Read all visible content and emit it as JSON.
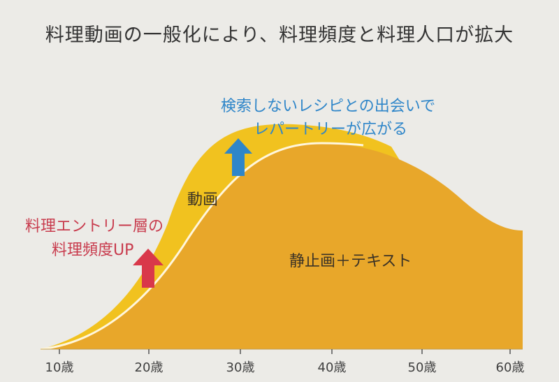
{
  "title": "料理動画の一般化により、料理頻度と料理人口が拡大",
  "annotations": {
    "blue_line1": "検索しないレシピとの出会いで",
    "blue_line2": "レパートリーが広がる",
    "red_line1": "料理エントリー層の",
    "red_line2": "料理頻度UP",
    "video_label": "動画",
    "static_label": "静止画＋テキスト"
  },
  "colors": {
    "background": "#ecebe7",
    "video_area": "#f1c21f",
    "static_area": "#e8a72a",
    "blue_arrow": "#2f86c9",
    "red_arrow": "#d9384a",
    "divider": "#fff6dc"
  },
  "chart_data": {
    "type": "area",
    "title": "料理動画の一般化により、料理頻度と料理人口が拡大",
    "xlabel": "",
    "ylabel": "",
    "x_ticks": [
      "10歳",
      "20歳",
      "30歳",
      "40歳",
      "50歳",
      "60歳"
    ],
    "series": [
      {
        "name": "動画",
        "note": "upper layer, peaks around age 30–35"
      },
      {
        "name": "静止画＋テキスト",
        "note": "lower layer, peaks around age 40–45"
      }
    ]
  }
}
